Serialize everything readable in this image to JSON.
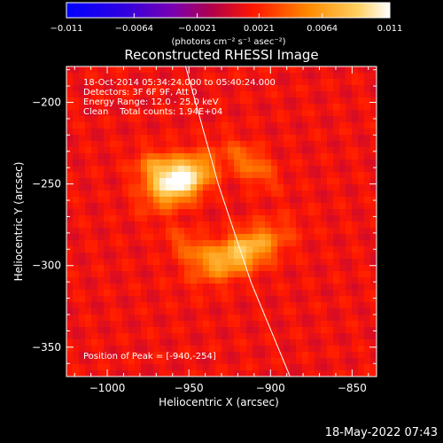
{
  "chart_data": {
    "type": "heatmap",
    "title": "Reconstructed RHESSI Image",
    "xlabel": "Heliocentric X (arcsec)",
    "ylabel": "Heliocentric Y (arcsec)",
    "xlim": [
      -1025,
      -835
    ],
    "ylim": [
      -368,
      -178
    ],
    "x_ticks": [
      -1000,
      -950,
      -900,
      -850
    ],
    "y_ticks": [
      -200,
      -250,
      -300,
      -350
    ],
    "x_tick_labels": [
      "−1000",
      "−950",
      "−900",
      "−850"
    ],
    "y_tick_labels": [
      "−200",
      "−250",
      "−300",
      "−350"
    ],
    "colorbar": {
      "min": -0.011,
      "max": 0.011,
      "ticks": [
        -0.011,
        -0.0064,
        -0.0021,
        0.0021,
        0.0064,
        0.011
      ],
      "tick_labels": [
        "−0.011",
        "−0.0064",
        "−0.0021",
        "0.0021",
        "0.0064",
        "0.011"
      ],
      "unit_label": "(photons cm⁻² s⁻¹ asec⁻²)",
      "colors": [
        "#0000ff",
        "#7a00c8",
        "#b0005a",
        "#ff2000",
        "#ff8a00",
        "#ffd060",
        "#ffffff"
      ]
    },
    "sources": [
      {
        "x": -955,
        "y": -248,
        "sx": 14,
        "sy": 8,
        "angle_deg": 30,
        "amp": 0.0105
      },
      {
        "x": -918,
        "y": -292,
        "sx": 18,
        "sy": 8,
        "angle_deg": 25,
        "amp": 0.0072
      },
      {
        "x": -970,
        "y": -240,
        "sx": 9,
        "sy": 7,
        "angle_deg": 0,
        "amp": 0.0045
      },
      {
        "x": -912,
        "y": -238,
        "sx": 12,
        "sy": 6,
        "angle_deg": -40,
        "amp": 0.0038
      },
      {
        "x": -948,
        "y": -290,
        "sx": 12,
        "sy": 6,
        "angle_deg": -35,
        "amp": 0.003
      }
    ],
    "background_level": 0.0012,
    "peak_x": -940,
    "peak_y": -254,
    "limb_points": [
      [
        -952,
        -178
      ],
      [
        -932,
        -250
      ],
      [
        -912,
        -310
      ],
      [
        -888,
        -368
      ]
    ],
    "annotations": [
      "18-Oct-2014 05:34:24.000 to 05:40:24.000",
      "Detectors: 3F 6F 9F, Att 0",
      "Energy Range: 12.0 - 25.0 keV",
      "Clean    Total counts: 1.94E+04"
    ],
    "peak_label": "Position of Peak = [-940,-254]"
  },
  "footer": {
    "timestamp": "18-May-2022 07:43"
  }
}
